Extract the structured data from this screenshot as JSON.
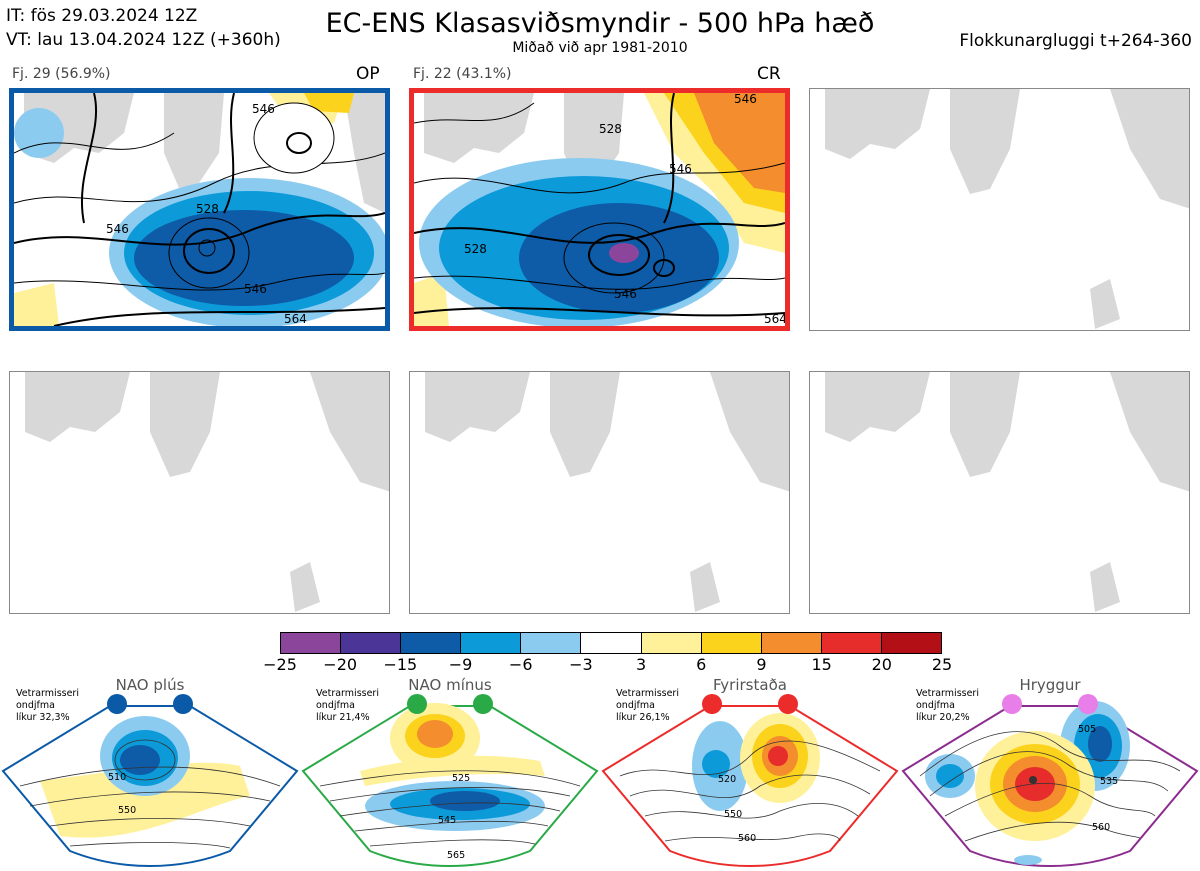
{
  "header": {
    "it_line": "IT: fös 29.03.2024 12Z",
    "vt_line": "VT: lau 13.04.2024 12Z  (+360h)",
    "title": "EC-ENS Klasasviðsmyndir - 500 hPa hæð",
    "subtitle": "Miðað við apr 1981-2010",
    "window": "Flokkunargluggi t+264-360"
  },
  "panels": [
    {
      "label": "Fj. 29 (56.9%)",
      "tag": "OP",
      "border": "#0b5aa8",
      "contours": [
        "528",
        "546",
        "546",
        "564",
        "546"
      ]
    },
    {
      "label": "Fj. 22 (43.1%)",
      "tag": "CR",
      "border": "#ec2b2b",
      "contours": [
        "528",
        "528",
        "546",
        "546",
        "564",
        "546"
      ]
    },
    {
      "label": "",
      "tag": "",
      "border": "",
      "contours": []
    },
    {
      "label": "",
      "tag": "",
      "border": "",
      "contours": []
    },
    {
      "label": "",
      "tag": "",
      "border": "",
      "contours": []
    },
    {
      "label": "",
      "tag": "",
      "border": "",
      "contours": []
    }
  ],
  "colorbar": {
    "colors": [
      "#8b469c",
      "#4b3596",
      "#0e5ba8",
      "#0c9ad9",
      "#8ccbf0",
      "#ffffff",
      "#fff19a",
      "#fcd31c",
      "#f38d2d",
      "#e72c2c",
      "#b30f17"
    ],
    "ticks": [
      "−25",
      "−20",
      "−15",
      "−9",
      "−6",
      "−3",
      "3",
      "6",
      "9",
      "15",
      "20",
      "25"
    ]
  },
  "regimes": [
    {
      "title": "NAO plús",
      "note": [
        "Vetrarmisseri",
        "ondjfma",
        "líkur 32,3%"
      ],
      "color": "#0b5aa8",
      "dot": "#0b5aa8",
      "labels": [
        "510",
        "550"
      ]
    },
    {
      "title": "NAO mínus",
      "note": [
        "Vetrarmisseri",
        "ondjfma",
        "líkur 21,4%"
      ],
      "color": "#2aaa46",
      "dot": "#2aaa46",
      "labels": [
        "525",
        "545",
        "565"
      ]
    },
    {
      "title": "Fyrirstaða",
      "note": [
        "Vetrarmisseri",
        "ondjfma",
        "líkur 26,1%"
      ],
      "color": "#ec2b2b",
      "dot": "#ec2b2b",
      "labels": [
        "520",
        "550",
        "560"
      ]
    },
    {
      "title": "Hryggur",
      "note": [
        "Vetrarmisseri",
        "ondjfma",
        "líkur 20,2%"
      ],
      "color": "#8b2c8e",
      "dot": "#e87ee8",
      "labels": [
        "505",
        "535",
        "560"
      ]
    }
  ]
}
